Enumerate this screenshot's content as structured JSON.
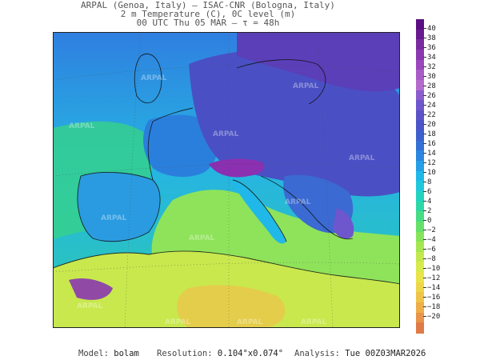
{
  "header": {
    "line1": "ARPAL (Genoa, Italy)  –  ISAC-CNR (Bologna, Italy)",
    "line2": "2 m Temperature (C), 0C level (m)",
    "line3": "00 UTC Thu 05 MAR  –  τ = 48h"
  },
  "colorbar": {
    "ticks": [
      "40",
      "38",
      "36",
      "34",
      "32",
      "30",
      "28",
      "26",
      "24",
      "22",
      "20",
      "18",
      "16",
      "14",
      "12",
      "10",
      "8",
      "6",
      "4",
      "2",
      "0",
      "−2",
      "−4",
      "−6",
      "−8",
      "−10",
      "−12",
      "−14",
      "−16",
      "−18",
      "−20"
    ],
    "colors": [
      "#5b0e80",
      "#6a1a90",
      "#7a2aa0",
      "#8a38b0",
      "#9a48bc",
      "#a85cc6",
      "#b46ccc",
      "#8a5ccc",
      "#6e56cc",
      "#5c52c8",
      "#4c54c8",
      "#3e60cc",
      "#3470d6",
      "#2a86e0",
      "#259fe6",
      "#20b8e8",
      "#20c8dc",
      "#22d4c0",
      "#2ed8a4",
      "#48dc84",
      "#66e06a",
      "#86e45a",
      "#a6e652",
      "#c2e84e",
      "#d8ea4c",
      "#e8e44a",
      "#eed64a",
      "#f0c44a",
      "#eeae4a",
      "#e8944a",
      "#e07a48"
    ]
  },
  "watermark": "ARPAL",
  "footer": {
    "model_label": "Model:",
    "model_value": "bolam",
    "resolution_label": "Resolution:",
    "resolution_value": "0.104°x0.074°",
    "analysis_label": "Analysis:",
    "analysis_value": "Tue 00Z03MAR2026"
  }
}
